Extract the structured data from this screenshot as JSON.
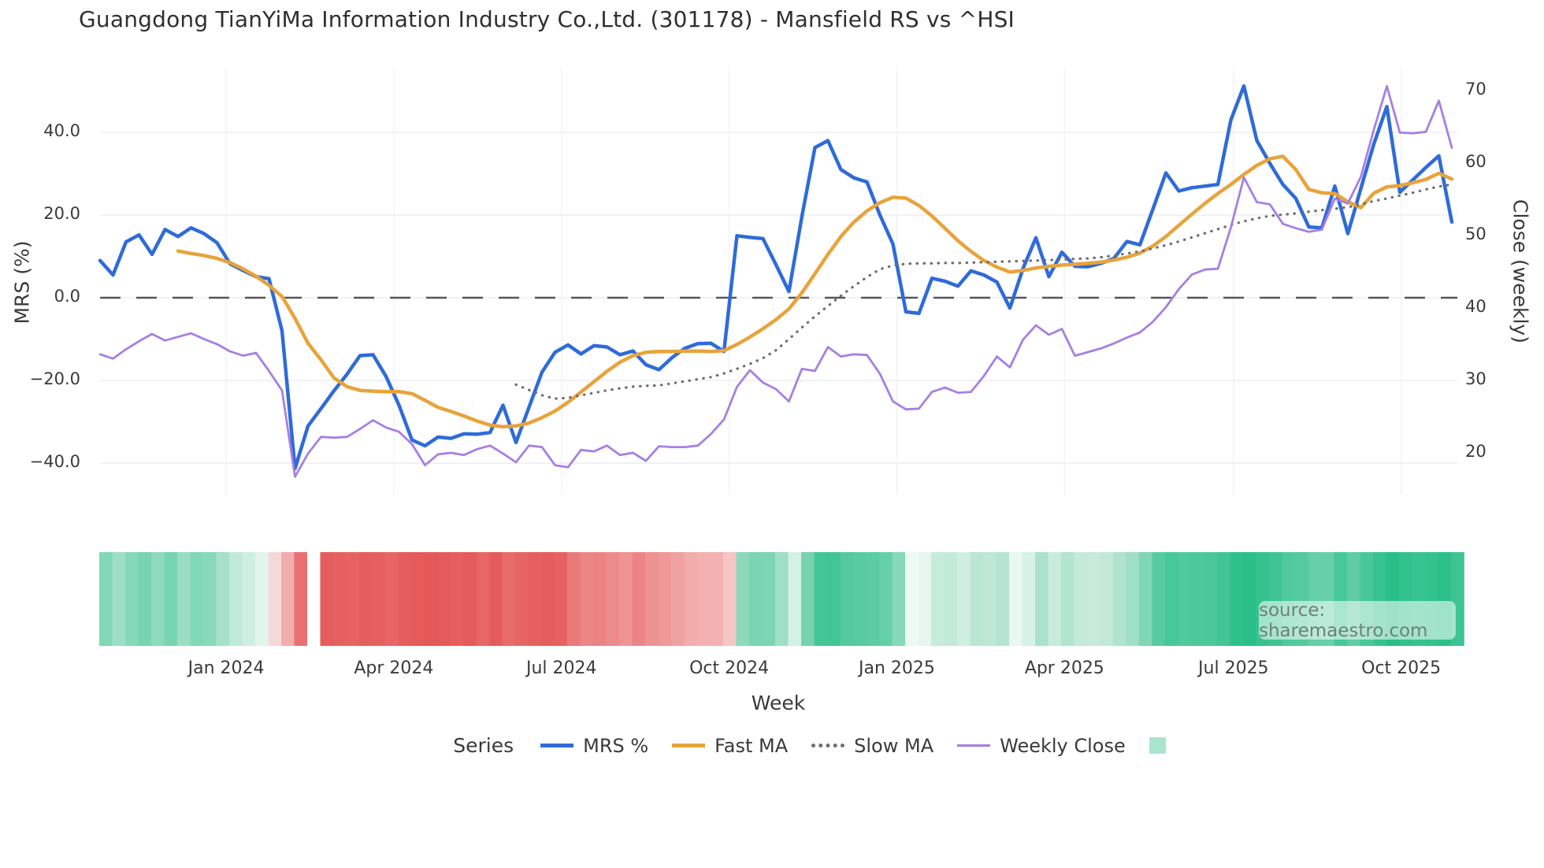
{
  "title": "Guangdong TianYiMa Information Industry Co.,Ltd. (301178) - Mansfield RS vs ^HSI",
  "source": "source: sharemaestro.com",
  "axes": {
    "left_label": "MRS (%)",
    "right_label": "Close (weekly)",
    "x_label": "Week",
    "left_ticks": [
      {
        "label": "40.0",
        "value": 40
      },
      {
        "label": "20.0",
        "value": 20
      },
      {
        "label": "0.0",
        "value": 0
      },
      {
        "label": "−20.0",
        "value": -20
      },
      {
        "label": "−40.0",
        "value": -40
      }
    ],
    "right_ticks": [
      {
        "label": "70",
        "value": 70
      },
      {
        "label": "60",
        "value": 60
      },
      {
        "label": "50",
        "value": 50
      },
      {
        "label": "40",
        "value": 40
      },
      {
        "label": "30",
        "value": 30
      },
      {
        "label": "20",
        "value": 20
      }
    ],
    "x_ticks": [
      {
        "label": "Jan 2024",
        "week": 9.7
      },
      {
        "label": "Apr 2024",
        "week": 22.6
      },
      {
        "label": "Jul 2024",
        "week": 35.5
      },
      {
        "label": "Oct 2024",
        "week": 48.4
      },
      {
        "label": "Jan 2025",
        "week": 61.3
      },
      {
        "label": "Apr 2025",
        "week": 74.2
      },
      {
        "label": "Jul 2025",
        "week": 87.2
      },
      {
        "label": "Oct 2025",
        "week": 100.1
      }
    ]
  },
  "legend": {
    "series_label": "Series",
    "items": [
      {
        "label": "MRS %",
        "color": "#2f6bd9",
        "style": "solid"
      },
      {
        "label": "Fast MA",
        "color": "#e8a33b",
        "style": "solid"
      },
      {
        "label": "Slow MA",
        "color": "#6e6e6e",
        "style": "dotted"
      },
      {
        "label": "Weekly Close",
        "color": "#a77fe3",
        "style": "solid"
      }
    ],
    "heat_swatch_color": "#a9e6ce"
  },
  "chart_data": {
    "type": "line",
    "x_axis": "weekly index, ~Nov 2023 to ~Nov 2025 (105 weeks)",
    "zero_line": {
      "axis": "left",
      "value": 0,
      "color": "#565656"
    },
    "left_ylim": [
      -47,
      56
    ],
    "right_ylim": [
      14,
      73
    ],
    "grid": "horizontal at left ticks, faint vertical at quarter ticks",
    "legend_position": "bottom center",
    "series": [
      {
        "name": "MRS %",
        "axis": "left",
        "color": "#2f6bd9",
        "width": 4.5,
        "dash": "solid",
        "values": [
          9,
          5.5,
          13.5,
          15.2,
          10.5,
          16.5,
          14.8,
          16.9,
          15.5,
          13.3,
          8.2,
          6.6,
          5.1,
          4.6,
          -8,
          -41.3,
          -31,
          -26.8,
          -22.5,
          -18.5,
          -14,
          -13.8,
          -19,
          -26,
          -34.4,
          -35.8,
          -33.7,
          -34,
          -32.9,
          -33,
          -32.6,
          -26,
          -35,
          -26.5,
          -18,
          -13.2,
          -11.4,
          -13.6,
          -11.6,
          -11.9,
          -13.8,
          -12.9,
          -16.2,
          -17.4,
          -14.5,
          -12.2,
          -11.1,
          -11,
          -13,
          15,
          14.6,
          14.3,
          8,
          1.5,
          19.7,
          36.3,
          38,
          31,
          29,
          28,
          20,
          13,
          -3.4,
          -3.8,
          4.7,
          4,
          2.8,
          6.5,
          5.5,
          3.8,
          -2.5,
          7,
          14.5,
          5.1,
          11,
          7.6,
          7.5,
          8.3,
          9.5,
          13.6,
          12.8,
          21.4,
          30.2,
          25.8,
          26.6,
          27,
          27.4,
          43,
          51.2,
          38,
          32.5,
          27.4,
          24,
          17.1,
          16.9,
          27,
          15.5,
          26.4,
          37.2,
          46.2,
          25.5,
          28.5,
          31.5,
          34.3,
          18.3
        ]
      },
      {
        "name": "Fast MA",
        "axis": "left",
        "color": "#e8a33b",
        "width": 4.5,
        "dash": "solid",
        "values": [
          null,
          null,
          null,
          null,
          null,
          null,
          11.3,
          10.7,
          10.2,
          9.5,
          8.5,
          7,
          5.2,
          3,
          0.3,
          -5,
          -11,
          -15,
          -19.4,
          -21.5,
          -22.4,
          -22.6,
          -22.7,
          -22.7,
          -23.2,
          -24.8,
          -26.5,
          -27.5,
          -28.6,
          -29.8,
          -30.8,
          -31.2,
          -31,
          -30.3,
          -29,
          -27.4,
          -25.3,
          -22.8,
          -20.3,
          -17.8,
          -15.6,
          -14,
          -13.2,
          -13,
          -13,
          -12.9,
          -12.9,
          -13,
          -12.8,
          -11.3,
          -9.5,
          -7.5,
          -5.3,
          -2.7,
          1.2,
          5.8,
          10.5,
          14.8,
          18.3,
          21,
          23,
          24.3,
          24.1,
          22.3,
          19.8,
          16.8,
          13.8,
          11.2,
          9,
          7.4,
          6.2,
          6.6,
          7.2,
          7.6,
          7.9,
          8.1,
          8.3,
          8.6,
          9.1,
          9.8,
          10.8,
          12.5,
          14.8,
          17.5,
          20.2,
          22.8,
          25.2,
          27.4,
          29.8,
          32,
          33.6,
          34.2,
          31,
          26.2,
          25.4,
          25.2,
          23.2,
          21.8,
          25.3,
          26.8,
          27.1,
          27.8,
          28.6,
          30.1,
          28.7
        ]
      },
      {
        "name": "Slow MA",
        "axis": "left",
        "color": "#6e6e6e",
        "width": 3.2,
        "dash": "dot",
        "values": [
          null,
          null,
          null,
          null,
          null,
          null,
          null,
          null,
          null,
          null,
          null,
          null,
          null,
          null,
          null,
          null,
          null,
          null,
          null,
          null,
          null,
          null,
          null,
          null,
          null,
          null,
          null,
          null,
          null,
          null,
          null,
          null,
          -21,
          -22.3,
          -23.6,
          -24.4,
          -24.2,
          -23.6,
          -23,
          -22.4,
          -21.9,
          -21.5,
          -21.3,
          -21.2,
          -20.7,
          -20.2,
          -19.7,
          -19.2,
          -18.3,
          -17.2,
          -16,
          -14.6,
          -12.7,
          -10,
          -7.2,
          -4.5,
          -2,
          0.5,
          2.8,
          5,
          6.9,
          7.8,
          8.2,
          8.3,
          8.3,
          8.4,
          8.4,
          8.5,
          8.6,
          8.7,
          8.8,
          8.9,
          9,
          9.1,
          9.2,
          9.4,
          9.5,
          9.8,
          10.2,
          10.7,
          11.2,
          11.9,
          12.7,
          13.6,
          14.6,
          15.6,
          16.6,
          17.6,
          18.5,
          19.2,
          19.8,
          20.1,
          20.4,
          20.8,
          21.2,
          21.5,
          21.9,
          22.6,
          23.4,
          24,
          24.7,
          25.4,
          26.2,
          26.9,
          27.4
        ]
      },
      {
        "name": "Weekly Close",
        "axis": "right",
        "color": "#a77fe3",
        "width": 2.8,
        "dash": "solid",
        "values": [
          33.5,
          32.9,
          34.2,
          35.3,
          36.3,
          35.4,
          35.9,
          36.4,
          35.6,
          34.9,
          33.9,
          33.3,
          33.7,
          31.2,
          28.5,
          16.6,
          19.8,
          22.1,
          22,
          22.1,
          23.2,
          24.4,
          23.4,
          22.8,
          21.1,
          18.2,
          19.7,
          19.9,
          19.6,
          20.4,
          20.9,
          19.8,
          18.6,
          20.9,
          20.7,
          18.2,
          17.9,
          20.3,
          20.1,
          20.9,
          19.6,
          19.9,
          18.8,
          20.8,
          20.7,
          20.7,
          20.9,
          22.5,
          24.5,
          29,
          31.3,
          29.6,
          28.7,
          27,
          31.5,
          31.2,
          34.5,
          33.2,
          33.5,
          33.4,
          30.8,
          27,
          25.9,
          26,
          28.3,
          28.9,
          28.2,
          28.3,
          30.5,
          33.2,
          31.7,
          35.5,
          37.5,
          36.2,
          37,
          33.3,
          33.8,
          34.3,
          35,
          35.8,
          36.5,
          38,
          40,
          42.5,
          44.5,
          45.2,
          45.3,
          51,
          57.9,
          54.5,
          54.2,
          51.5,
          50.9,
          50.4,
          50.7,
          55,
          54.3,
          58,
          64.5,
          70.5,
          64.1,
          64,
          64.2,
          68.5,
          62
        ]
      }
    ],
    "heat_strip": {
      "description": "weekly relative-strength color band below chart",
      "colors": [
        "#82d7b6",
        "#9cdfc6",
        "#85d8b8",
        "#77d4b0",
        "#8edabc",
        "#77d4b0",
        "#99dec4",
        "#82d7b6",
        "#88d9b9",
        "#a6e2cb",
        "#c0e9d8",
        "#cdeee0",
        "#e0f5ec",
        "#f7d8d8",
        "#f1acac",
        "#ea7171",
        "#ffffff",
        "#e65d5d",
        "#e66060",
        "#e76363",
        "#e65d5d",
        "#e66060",
        "#e76565",
        "#e65d5d",
        "#e55a5a",
        "#e55858",
        "#e55b5b",
        "#e65e5e",
        "#e55a5a",
        "#e76666",
        "#e55a5a",
        "#e86b6b",
        "#e76464",
        "#e66060",
        "#e65d5d",
        "#e66161",
        "#ea7979",
        "#ec8686",
        "#eb8383",
        "#ed8b8b",
        "#ee9494",
        "#ec8484",
        "#ee9191",
        "#ef9898",
        "#f0a1a1",
        "#f2acac",
        "#f3b2b2",
        "#f3b1b1",
        "#f6c5c5",
        "#8cdaba",
        "#7ad5b2",
        "#7dd5b4",
        "#9edfc6",
        "#d3f1e5",
        "#76d3ae",
        "#44c797",
        "#41c595",
        "#54ca9e",
        "#59cba1",
        "#5ccca2",
        "#67cfa8",
        "#85d8b8",
        "#eef9f4",
        "#e6f6ee",
        "#c7ecda",
        "#c2ead7",
        "#cfeedf",
        "#b9e7d2",
        "#bee8d5",
        "#b4e5d0",
        "#e9f8f1",
        "#d6f1e6",
        "#aae2cb",
        "#c8ecdb",
        "#b2e4ce",
        "#c4ead8",
        "#c6ebd9",
        "#c1e9d6",
        "#afe3cd",
        "#a0dfc7",
        "#80d6b5",
        "#57cba0",
        "#46c898",
        "#50c99c",
        "#4dc89a",
        "#4bc899",
        "#41c595",
        "#30c18b",
        "#29bf87",
        "#35c28e",
        "#3ec493",
        "#50c99c",
        "#54ca9e",
        "#65cfa7",
        "#68d0a8",
        "#46c898",
        "#61cda5",
        "#48c899",
        "#37c38f",
        "#29bf87",
        "#31c18b",
        "#37c38f",
        "#32c28c",
        "#2cc088",
        "#3ec493"
      ]
    }
  }
}
